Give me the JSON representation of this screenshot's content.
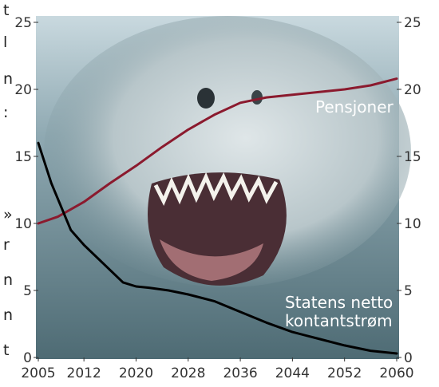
{
  "left_margin_fragments": [
    "t",
    "l",
    "n",
    ":",
    "»",
    "r",
    "n",
    "n",
    "t"
  ],
  "chart_data": {
    "type": "line",
    "title": "",
    "xlabel": "",
    "ylabel": "",
    "x_ticks": [
      2005,
      2012,
      2020,
      2028,
      2036,
      2044,
      2052,
      2060
    ],
    "xlim": [
      2005,
      2060
    ],
    "ylim": [
      0,
      25
    ],
    "y_ticks": [
      0,
      5,
      10,
      15,
      20,
      25
    ],
    "y_axes": "left-and-right",
    "grid": false,
    "background": "photo of a shark's open jaws underwater",
    "series": [
      {
        "name": "Pensjoner",
        "color": "#8b1a2e",
        "x": [
          2005,
          2008,
          2012,
          2016,
          2020,
          2024,
          2028,
          2032,
          2036,
          2040,
          2044,
          2048,
          2052,
          2056,
          2060
        ],
        "y": [
          10.0,
          10.5,
          11.6,
          13.0,
          14.3,
          15.7,
          17.0,
          18.1,
          19.0,
          19.4,
          19.6,
          19.8,
          20.0,
          20.3,
          20.8
        ]
      },
      {
        "name": "Statens netto kontantstrøm",
        "color": "#000000",
        "x": [
          2005,
          2007,
          2010,
          2012,
          2015,
          2018,
          2020,
          2022,
          2025,
          2028,
          2032,
          2036,
          2040,
          2044,
          2048,
          2052,
          2056,
          2060
        ],
        "y": [
          16.0,
          13.0,
          9.5,
          8.4,
          7.0,
          5.6,
          5.3,
          5.2,
          5.0,
          4.7,
          4.2,
          3.4,
          2.6,
          1.9,
          1.4,
          0.9,
          0.5,
          0.3
        ]
      }
    ],
    "annotations": [
      {
        "series": "Pensjoner",
        "lines": [
          "Pensjoner"
        ]
      },
      {
        "series": "Statens netto kontantstrøm",
        "lines": [
          "Statens netto",
          "kontantstrøm"
        ]
      }
    ]
  }
}
